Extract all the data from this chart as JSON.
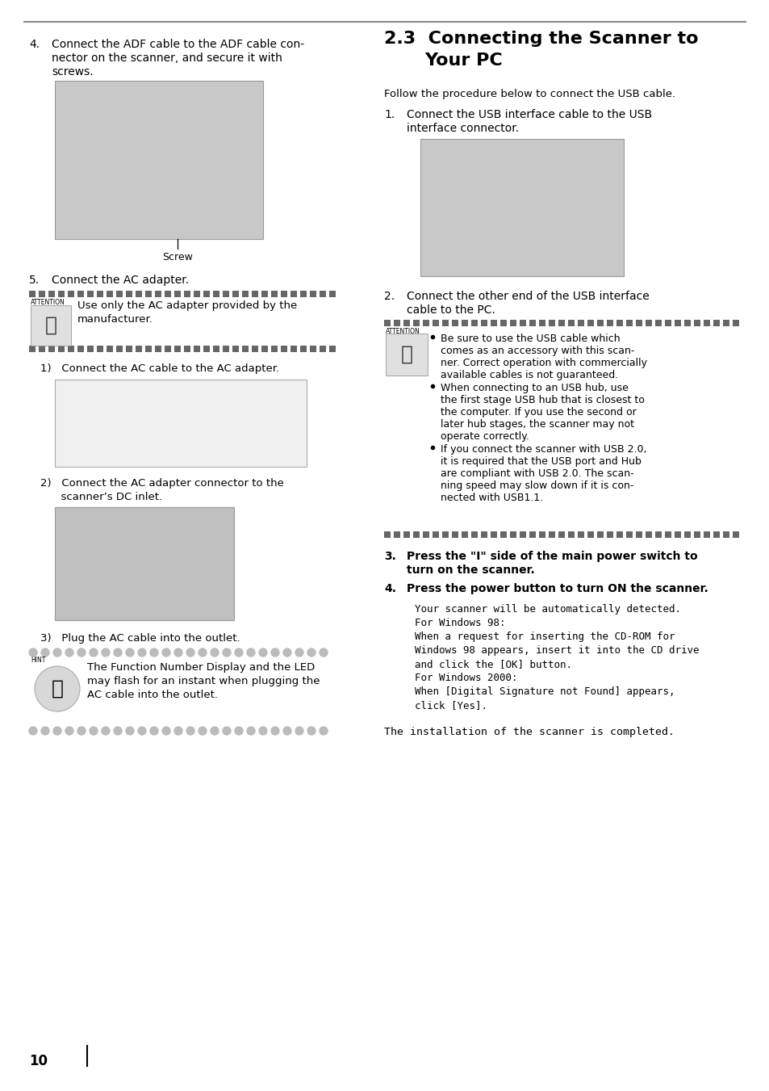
{
  "page_bg": "#ffffff",
  "top_line_color": "#888888",
  "left": {
    "item4_line1": "Connect the ADF cable to the ADF cable con-",
    "item4_line2": "nector on the scanner, and secure it with",
    "item4_line3": "screws.",
    "screw_label": "Screw",
    "item5": "Connect the AC adapter.",
    "attn_text_line1": "Use only the AC adapter provided by the",
    "attn_text_line2": "manufacturer.",
    "sub1": "1)   Connect the AC cable to the AC adapter.",
    "sub2_line1": "2)   Connect the AC adapter connector to the",
    "sub2_line2": "      scanner’s DC inlet.",
    "sub3": "3)   Plug the AC cable into the outlet.",
    "hint_line1": "The Function Number Display and the LED",
    "hint_line2": "may flash for an instant when plugging the",
    "hint_line3": "AC cable into the outlet."
  },
  "right": {
    "title_line1": "2.3  Connecting the Scanner to",
    "title_line2": "Your PC",
    "intro": "Follow the procedure below to connect the USB cable.",
    "item1_line1": "Connect the USB interface cable to the USB",
    "item1_line2": "interface connector.",
    "item2_line1": "Connect the other end of the USB interface",
    "item2_line2": "cable to the PC.",
    "bullet1_line1": "Be sure to use the USB cable which",
    "bullet1_line2": "comes as an accessory with this scan-",
    "bullet1_line3": "ner. Correct operation with commercially",
    "bullet1_line4": "available cables is not guaranteed.",
    "bullet2_line1": "When connecting to an USB hub, use",
    "bullet2_line2": "the first stage USB hub that is closest to",
    "bullet2_line3": "the computer. If you use the second or",
    "bullet2_line4": "later hub stages, the scanner may not",
    "bullet2_line5": "operate correctly.",
    "bullet3_line1": "If you connect the scanner with USB 2.0,",
    "bullet3_line2": "it is required that the USB port and Hub",
    "bullet3_line3": "are compliant with USB 2.0. The scan-",
    "bullet3_line4": "ning speed may slow down if it is con-",
    "bullet3_line5": "nected with USB1.1.",
    "item3_line1": "Press the \"I\" side of the main power switch to",
    "item3_line2": "turn on the scanner.",
    "item4": "Press the power button to turn ON the scanner.",
    "body_line1": "Your scanner will be automatically detected.",
    "body_line2": "For Windows 98:",
    "body_line3": "When a request for inserting the CD-ROM for",
    "body_line4": "Windows 98 appears, insert it into the CD drive",
    "body_line5": "and click the [OK] button.",
    "body_line6": "For Windows 2000:",
    "body_line7": "When [Digital Signature not Found] appears,",
    "body_line8": "click [Yes].",
    "install": "The installation of the scanner is completed."
  },
  "footer_num": "10",
  "sq_color": "#666666",
  "dot_color": "#bbbbbb",
  "attn_label": "ATTENTION",
  "hint_label": "HINT"
}
